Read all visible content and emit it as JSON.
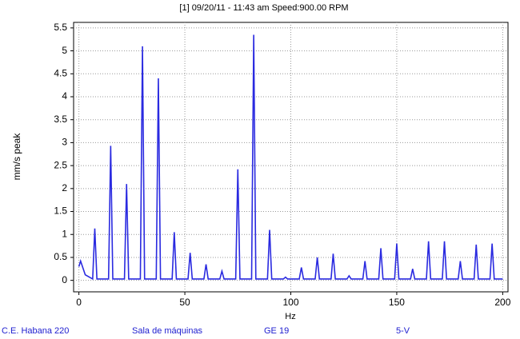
{
  "chart_data": {
    "type": "line",
    "title": "[1] 09/20/11 - 11:43 am Speed:900.00  RPM",
    "y_label": "mm/s  peak",
    "x_label": "Hz",
    "footer": [
      "C.E. Habana 220",
      "Sala de máquinas",
      "GE 19",
      "5-V"
    ],
    "color": "#2a2ae0",
    "grid": true,
    "xlim": [
      -2.5,
      202.5
    ],
    "xticks": [
      0,
      50,
      100,
      150,
      200
    ],
    "ylim": [
      -0.25,
      5.62
    ],
    "yticks": [
      0,
      0.5,
      1,
      1.5,
      2,
      2.5,
      3,
      3.5,
      4,
      4.5,
      5,
      5.5
    ],
    "x": [
      0,
      0.8,
      3,
      6.5,
      7.5,
      8.5,
      14,
      15,
      16,
      21.5,
      22.5,
      23.5,
      29,
      30,
      31,
      36.5,
      37.5,
      38.5,
      44,
      45,
      46,
      51.5,
      52.5,
      53.5,
      59,
      60,
      61,
      66.5,
      67.5,
      68.5,
      74,
      75,
      76,
      81.5,
      82.5,
      83.5,
      89,
      90,
      91,
      96.5,
      97.5,
      98.5,
      104,
      105,
      106,
      111.5,
      112.5,
      113.5,
      119,
      120,
      121,
      126.5,
      127.5,
      128.5,
      134,
      135,
      136,
      141.5,
      142.5,
      143.5,
      149,
      150,
      151,
      156.5,
      157.5,
      158.5,
      164,
      165,
      166,
      171.5,
      172.5,
      173.5,
      179,
      180,
      181,
      186.5,
      187.5,
      188.5,
      194,
      195,
      196,
      200
    ],
    "values": [
      0.3,
      0.42,
      0.12,
      0.03,
      1.13,
      0.03,
      0.03,
      2.93,
      0.03,
      0.03,
      2.1,
      0.03,
      0.03,
      5.1,
      0.03,
      0.03,
      4.4,
      0.03,
      0.03,
      1.05,
      0.03,
      0.03,
      0.6,
      0.03,
      0.03,
      0.35,
      0.03,
      0.03,
      0.2,
      0.03,
      0.03,
      2.42,
      0.03,
      0.03,
      5.35,
      0.03,
      0.03,
      1.1,
      0.03,
      0.03,
      0.07,
      0.03,
      0.03,
      0.28,
      0.03,
      0.03,
      0.5,
      0.03,
      0.03,
      0.58,
      0.03,
      0.03,
      0.1,
      0.03,
      0.03,
      0.42,
      0.03,
      0.03,
      0.7,
      0.03,
      0.03,
      0.8,
      0.03,
      0.03,
      0.25,
      0.03,
      0.03,
      0.85,
      0.03,
      0.03,
      0.85,
      0.03,
      0.03,
      0.42,
      0.03,
      0.03,
      0.78,
      0.03,
      0.03,
      0.8,
      0.03,
      0.03
    ]
  }
}
